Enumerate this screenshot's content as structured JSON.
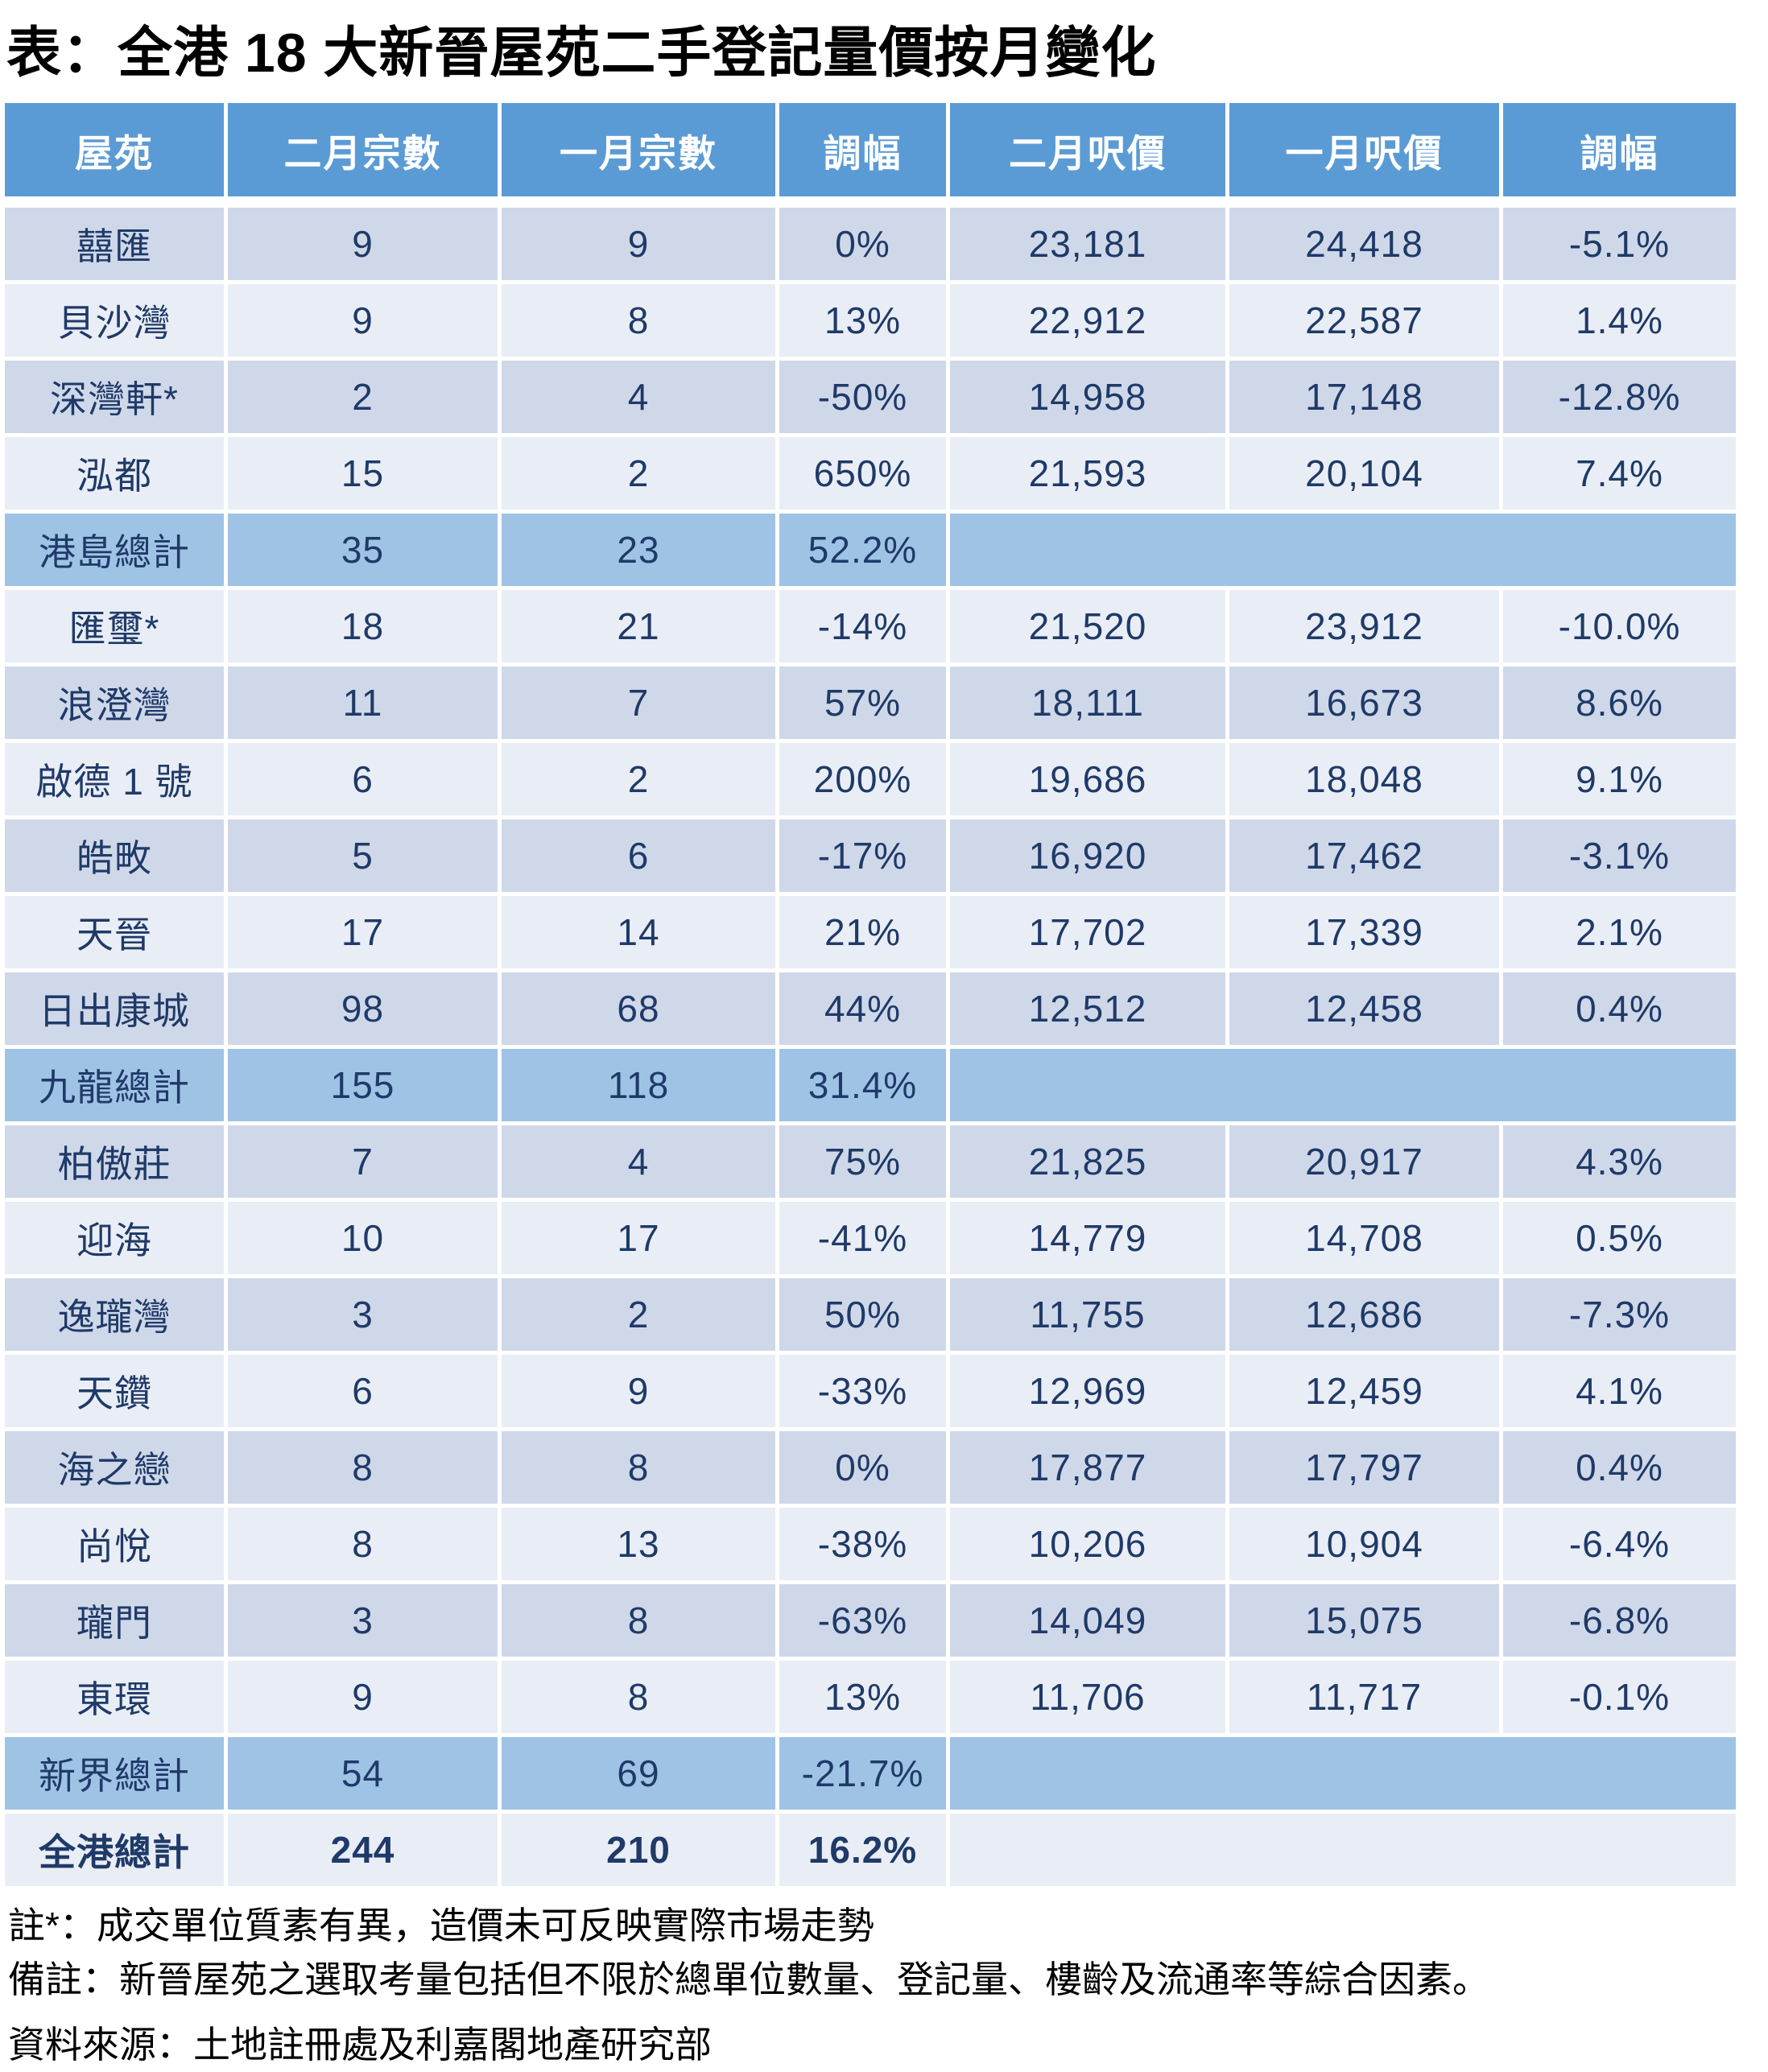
{
  "colors": {
    "header_bg": "#5B9BD5",
    "subtotal_bg": "#9FC3E5",
    "row_dark_bg": "#CFD8E9",
    "row_light_bg": "#E9EDF5",
    "cell_text": "#1F3A68",
    "title_text": "#000000",
    "page_bg": "#FFFFFF"
  },
  "chart_data": {
    "type": "table",
    "title": "表：全港 18 大新晉屋苑二手登記量價按月變化",
    "columns": [
      "屋苑",
      "二月宗數",
      "一月宗數",
      "調幅",
      "二月呎價",
      "一月呎價",
      "調幅"
    ],
    "rows": [
      {
        "cells": [
          "囍匯",
          "9",
          "9",
          "0%",
          "23,181",
          "24,418",
          "-5.1%"
        ],
        "variant": "dark",
        "merged_tail": false
      },
      {
        "cells": [
          "貝沙灣",
          "9",
          "8",
          "13%",
          "22,912",
          "22,587",
          "1.4%"
        ],
        "variant": "light",
        "merged_tail": false
      },
      {
        "cells": [
          "深灣軒*",
          "2",
          "4",
          "-50%",
          "14,958",
          "17,148",
          "-12.8%"
        ],
        "variant": "dark",
        "merged_tail": false
      },
      {
        "cells": [
          "泓都",
          "15",
          "2",
          "650%",
          "21,593",
          "20,104",
          "7.4%"
        ],
        "variant": "light",
        "merged_tail": false
      },
      {
        "cells": [
          "港島總計",
          "35",
          "23",
          "52.2%",
          "",
          "",
          ""
        ],
        "variant": "subtotal",
        "merged_tail": true
      },
      {
        "cells": [
          "匯璽*",
          "18",
          "21",
          "-14%",
          "21,520",
          "23,912",
          "-10.0%"
        ],
        "variant": "light",
        "merged_tail": false
      },
      {
        "cells": [
          "浪澄灣",
          "11",
          "7",
          "57%",
          "18,111",
          "16,673",
          "8.6%"
        ],
        "variant": "dark",
        "merged_tail": false
      },
      {
        "cells": [
          "啟德 1 號",
          "6",
          "2",
          "200%",
          "19,686",
          "18,048",
          "9.1%"
        ],
        "variant": "light",
        "merged_tail": false
      },
      {
        "cells": [
          "皓畋",
          "5",
          "6",
          "-17%",
          "16,920",
          "17,462",
          "-3.1%"
        ],
        "variant": "dark",
        "merged_tail": false
      },
      {
        "cells": [
          "天晉",
          "17",
          "14",
          "21%",
          "17,702",
          "17,339",
          "2.1%"
        ],
        "variant": "light",
        "merged_tail": false
      },
      {
        "cells": [
          "日出康城",
          "98",
          "68",
          "44%",
          "12,512",
          "12,458",
          "0.4%"
        ],
        "variant": "dark",
        "merged_tail": false
      },
      {
        "cells": [
          "九龍總計",
          "155",
          "118",
          "31.4%",
          "",
          "",
          ""
        ],
        "variant": "subtotal",
        "merged_tail": true
      },
      {
        "cells": [
          "柏傲莊",
          "7",
          "4",
          "75%",
          "21,825",
          "20,917",
          "4.3%"
        ],
        "variant": "dark",
        "merged_tail": false
      },
      {
        "cells": [
          "迎海",
          "10",
          "17",
          "-41%",
          "14,779",
          "14,708",
          "0.5%"
        ],
        "variant": "light",
        "merged_tail": false
      },
      {
        "cells": [
          "逸瓏灣",
          "3",
          "2",
          "50%",
          "11,755",
          "12,686",
          "-7.3%"
        ],
        "variant": "dark",
        "merged_tail": false
      },
      {
        "cells": [
          "天鑽",
          "6",
          "9",
          "-33%",
          "12,969",
          "12,459",
          "4.1%"
        ],
        "variant": "light",
        "merged_tail": false
      },
      {
        "cells": [
          "海之戀",
          "8",
          "8",
          "0%",
          "17,877",
          "17,797",
          "0.4%"
        ],
        "variant": "dark",
        "merged_tail": false
      },
      {
        "cells": [
          "尚悅",
          "8",
          "13",
          "-38%",
          "10,206",
          "10,904",
          "-6.4%"
        ],
        "variant": "light",
        "merged_tail": false
      },
      {
        "cells": [
          "瓏門",
          "3",
          "8",
          "-63%",
          "14,049",
          "15,075",
          "-6.8%"
        ],
        "variant": "dark",
        "merged_tail": false
      },
      {
        "cells": [
          "東環",
          "9",
          "8",
          "13%",
          "11,706",
          "11,717",
          "-0.1%"
        ],
        "variant": "light",
        "merged_tail": false
      },
      {
        "cells": [
          "新界總計",
          "54",
          "69",
          "-21.7%",
          "",
          "",
          ""
        ],
        "variant": "subtotal",
        "merged_tail": true
      },
      {
        "cells": [
          "全港總計",
          "244",
          "210",
          "16.2%",
          "",
          "",
          ""
        ],
        "variant": "total",
        "merged_tail": true
      }
    ],
    "notes": [
      "註*：成交單位質素有異，造價未可反映實際市場走勢",
      "備註：新晉屋苑之選取考量包括但不限於總單位數量、登記量、樓齡及流通率等綜合因素。",
      "資料來源：土地註冊處及利嘉閣地產研究部"
    ]
  }
}
